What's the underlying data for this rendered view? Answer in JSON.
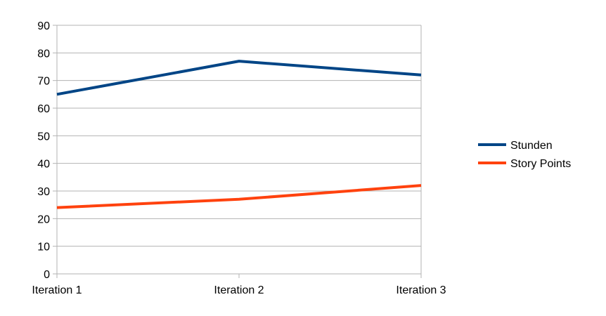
{
  "chart_data": {
    "type": "line",
    "categories": [
      "Iteration 1",
      "Iteration 2",
      "Iteration 3"
    ],
    "series": [
      {
        "name": "Stunden",
        "values": [
          65,
          77,
          72
        ],
        "color": "#004586"
      },
      {
        "name": "Story Points",
        "values": [
          24,
          27,
          32
        ],
        "color": "#ff420e"
      }
    ],
    "ylim": [
      0,
      90
    ],
    "yticks": [
      0,
      10,
      20,
      30,
      40,
      50,
      60,
      70,
      80,
      90
    ],
    "grid": true,
    "legend": "right",
    "xlabel": "",
    "ylabel": "",
    "title": ""
  }
}
